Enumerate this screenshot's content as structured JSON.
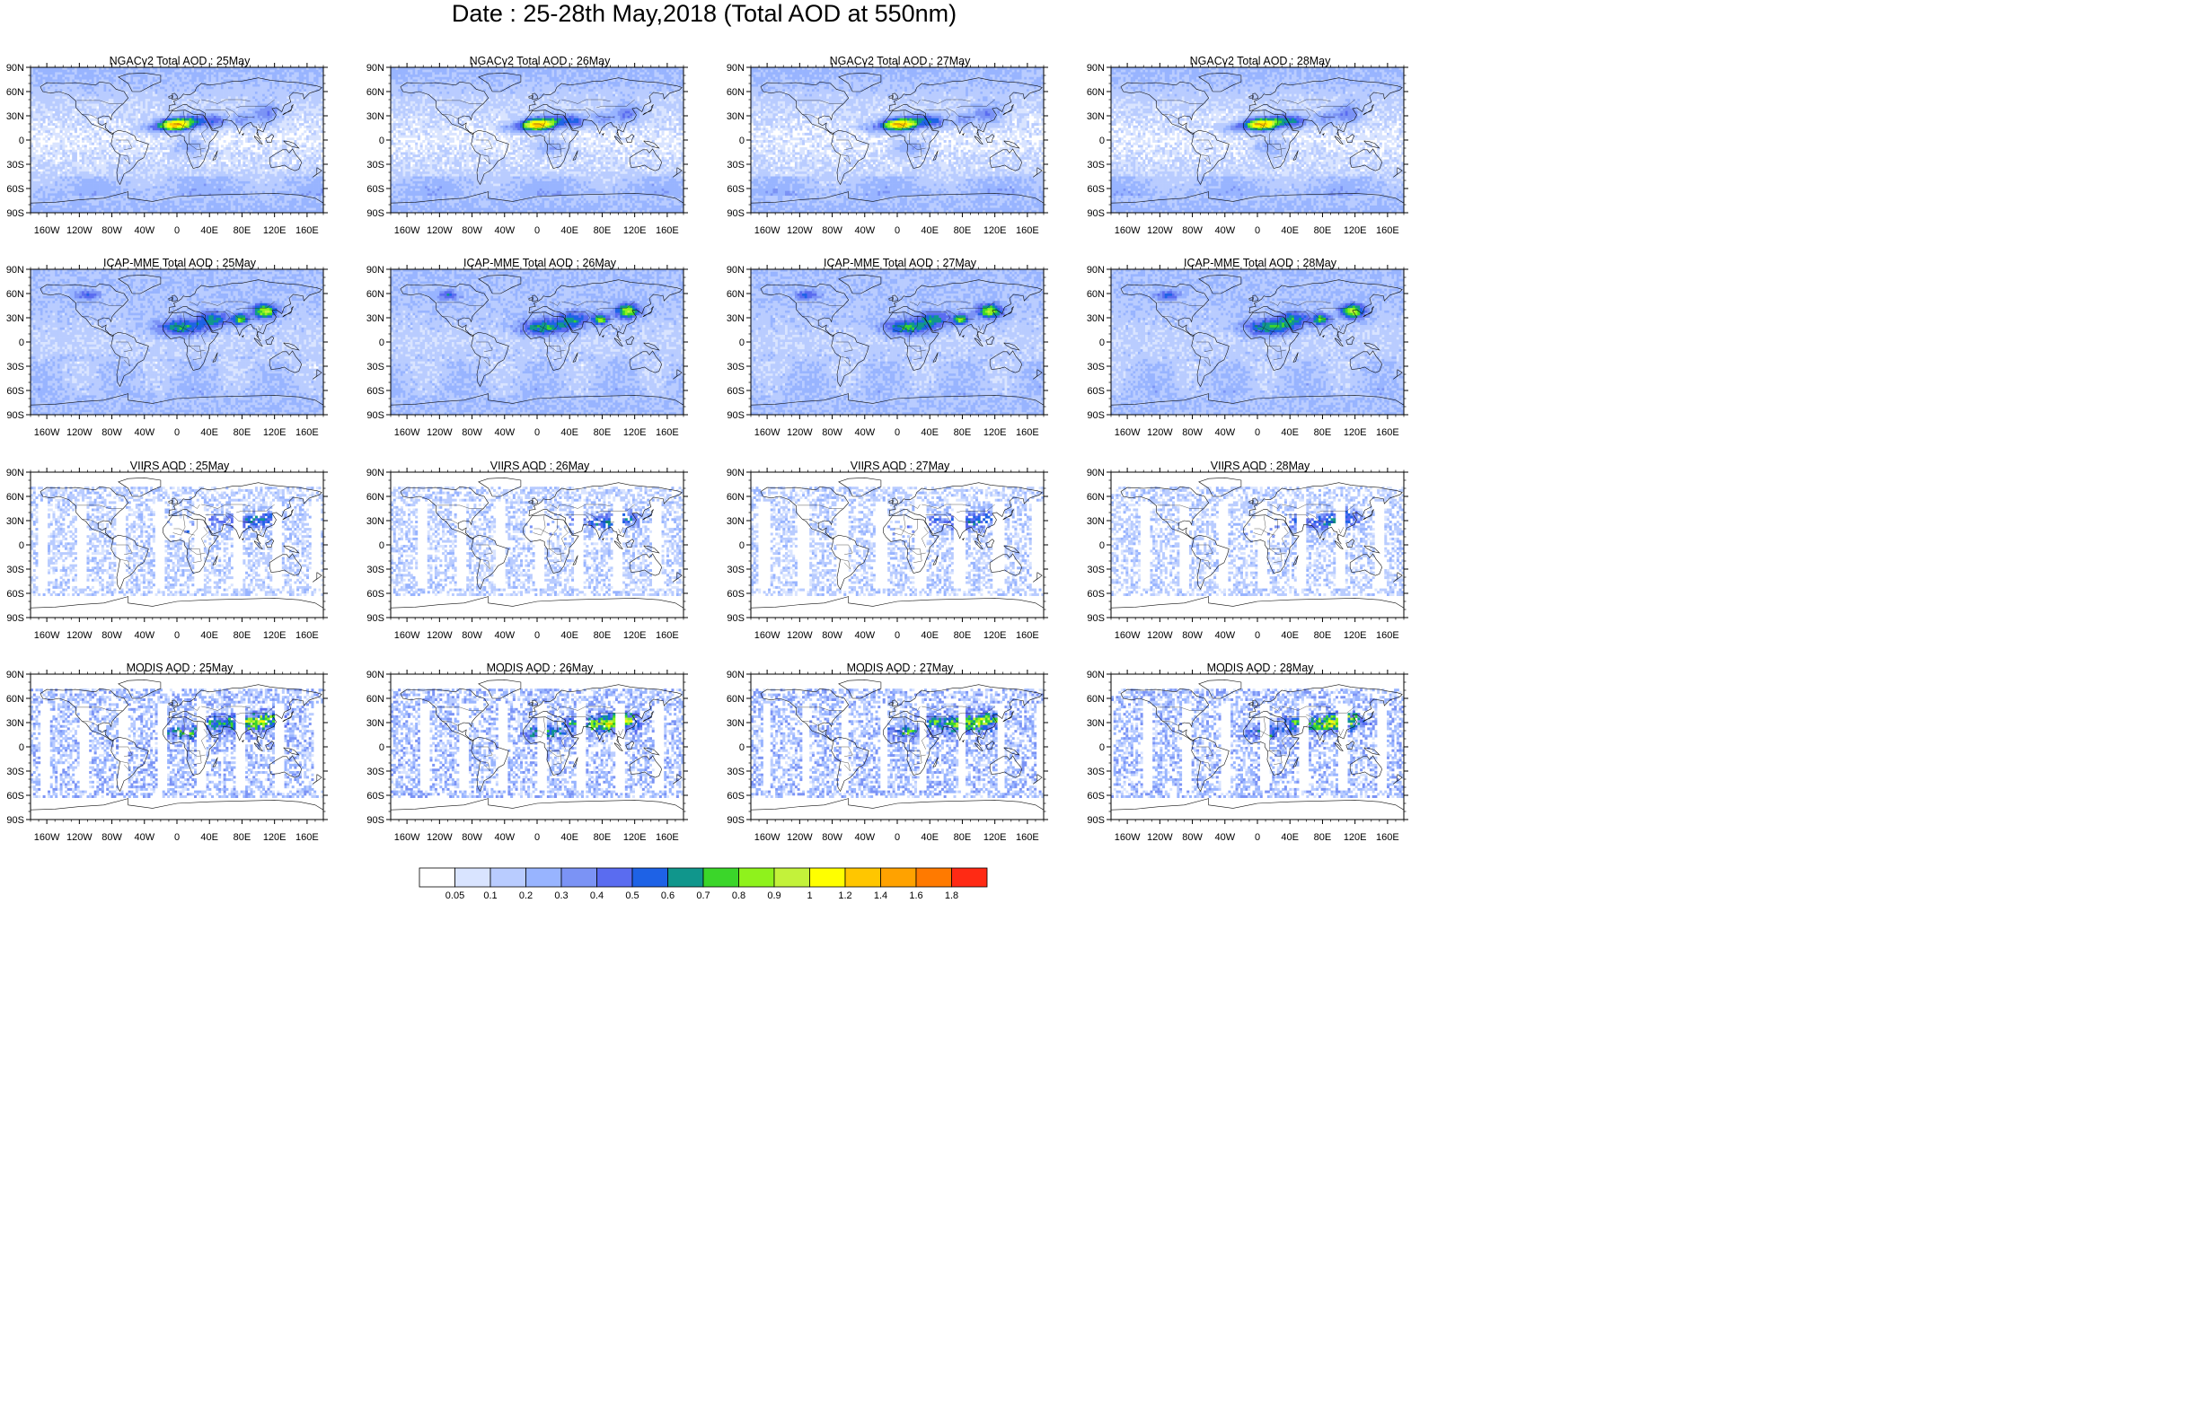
{
  "title": "Date : 25-28th May,2018 (Total AOD at 550nm)",
  "panels": [
    {
      "title": "NGACv2 Total AOD : 25May",
      "kind": "model"
    },
    {
      "title": "NGACv2 Total AOD : 26May",
      "kind": "model"
    },
    {
      "title": "NGACv2 Total AOD : 27May",
      "kind": "model"
    },
    {
      "title": "NGACv2 Total AOD : 28May",
      "kind": "model"
    },
    {
      "title": "ICAP-MME Total AOD : 25May",
      "kind": "ensemble"
    },
    {
      "title": "ICAP-MME Total AOD : 26May",
      "kind": "ensemble"
    },
    {
      "title": "ICAP-MME Total AOD : 27May",
      "kind": "ensemble"
    },
    {
      "title": "ICAP-MME Total AOD : 28May",
      "kind": "ensemble"
    },
    {
      "title": "VIIRS AOD : 25May",
      "kind": "satellite_sparse"
    },
    {
      "title": "VIIRS AOD : 26May",
      "kind": "satellite_sparse"
    },
    {
      "title": "VIIRS AOD : 27May",
      "kind": "satellite_sparse"
    },
    {
      "title": "VIIRS AOD : 28May",
      "kind": "satellite_sparse"
    },
    {
      "title": "MODIS AOD : 25May",
      "kind": "satellite"
    },
    {
      "title": "MODIS AOD : 26May",
      "kind": "satellite"
    },
    {
      "title": "MODIS AOD : 27May",
      "kind": "satellite"
    },
    {
      "title": "MODIS AOD : 28May",
      "kind": "satellite"
    }
  ],
  "chart_data": {
    "type": "heatmap",
    "title": "Date : 25-28th May,2018 (Total AOD at 550nm)",
    "lat_ticks": [
      "90N",
      "60N",
      "30N",
      "0",
      "30S",
      "60S",
      "90S"
    ],
    "lat_values": [
      90,
      60,
      30,
      0,
      -30,
      -60,
      -90
    ],
    "lon_ticks": [
      "160W",
      "120W",
      "80W",
      "40W",
      "0",
      "40E",
      "80E",
      "120E",
      "160E"
    ],
    "lon_values": [
      -160,
      -120,
      -80,
      -40,
      0,
      40,
      80,
      120,
      160
    ],
    "xlim": [
      -180,
      180
    ],
    "ylim": [
      -90,
      90
    ],
    "colorbar": {
      "labels": [
        "0.05",
        "0.1",
        "0.2",
        "0.3",
        "0.4",
        "0.5",
        "0.6",
        "0.7",
        "0.8",
        "0.9",
        "1",
        "1.2",
        "1.4",
        "1.6",
        "1.8"
      ],
      "colors": [
        "#ffffff",
        "#d9e4ff",
        "#b9ccff",
        "#98b4ff",
        "#7b93f5",
        "#5a6cf0",
        "#1e62e6",
        "#10968c",
        "#3bd62a",
        "#8ff21c",
        "#c3f23a",
        "#ffff00",
        "#ffc600",
        "#ffa200",
        "#ff7a00",
        "#ff2a14"
      ]
    }
  }
}
